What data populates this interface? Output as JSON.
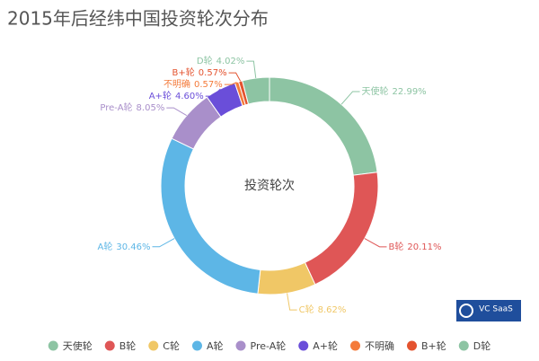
{
  "chart_data": {
    "type": "donut",
    "title": "2015年后经纬中国投资轮次分布",
    "center_label": "投资轮次",
    "logo": "VC SaaS",
    "categories": [
      "天使轮",
      "B轮",
      "C轮",
      "A轮",
      "Pre-A轮",
      "A+轮",
      "不明确",
      "B+轮",
      "D轮"
    ],
    "values": [
      22.99,
      20.11,
      8.62,
      30.46,
      8.05,
      4.6,
      0.57,
      0.57,
      4.02
    ],
    "value_labels": [
      "22.99%",
      "20.11%",
      "8.62%",
      "30.46%",
      "8.05%",
      "4.60%",
      "0.57%",
      "0.57%",
      "4.02%"
    ],
    "colors": [
      "#8dc4a3",
      "#df5656",
      "#f0c766",
      "#5db6e6",
      "#a98fca",
      "#6a4ed9",
      "#f47b3b",
      "#e4532f",
      "#8dc4a3"
    ],
    "legend": "bottom"
  }
}
